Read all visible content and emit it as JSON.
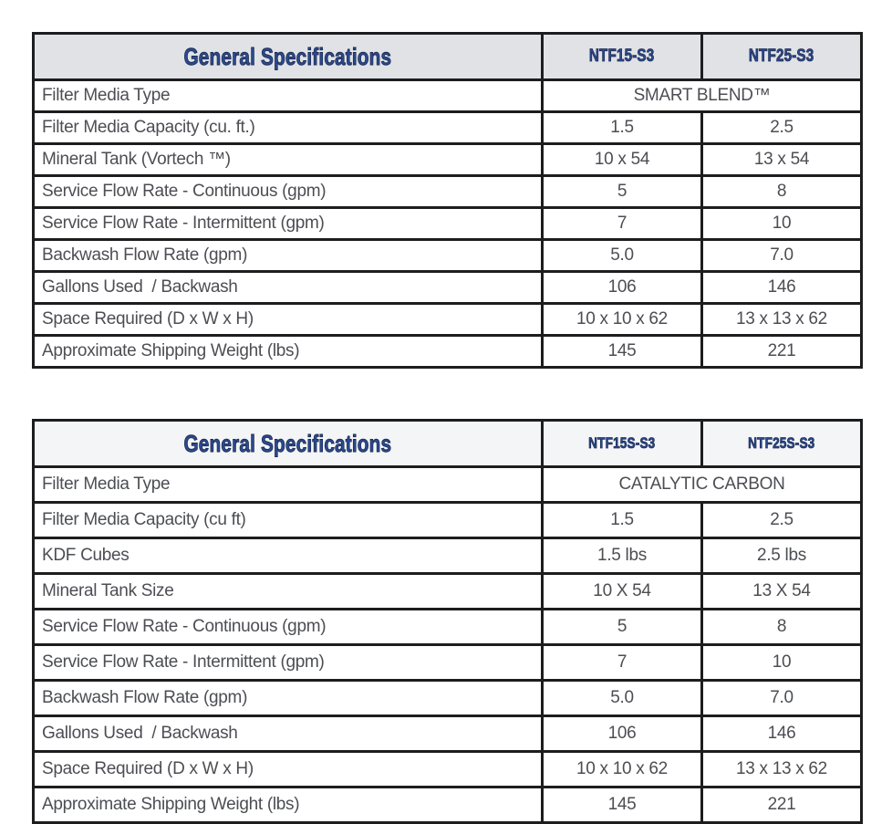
{
  "page": {
    "background": "#ffffff",
    "border_color": "#1d1d1f",
    "body_text_color": "#4c4e53",
    "heading_text_color": "#2b4a8f"
  },
  "tables": [
    {
      "title": "General Specifications",
      "columns": [
        "NTF15-S3",
        "NTF25-S3"
      ],
      "header_bg": "#e1e2e6",
      "rows": [
        {
          "label": "Filter Media Type",
          "values": [
            "SMART BLEND™"
          ]
        },
        {
          "label": "Filter Media Capacity (cu. ft.)",
          "values": [
            "1.5",
            "2.5"
          ]
        },
        {
          "label": "Mineral Tank (Vortech ™)",
          "values": [
            "10 x 54",
            "13 x 54"
          ]
        },
        {
          "label": "Service Flow Rate - Continuous (gpm)",
          "values": [
            "5",
            "8"
          ]
        },
        {
          "label": "Service Flow Rate - Intermittent (gpm)",
          "values": [
            "7",
            "10"
          ]
        },
        {
          "label": "Backwash Flow Rate (gpm)",
          "values": [
            "5.0",
            "7.0"
          ]
        },
        {
          "label": "Gallons Used  / Backwash",
          "values": [
            "106",
            "146"
          ]
        },
        {
          "label": "Space Required (D x W x H)",
          "values": [
            "10 x 10 x 62",
            "13 x 13 x 62"
          ]
        },
        {
          "label": "Approximate Shipping Weight (lbs)",
          "values": [
            "145",
            "221"
          ]
        }
      ]
    },
    {
      "title": "General Specifications",
      "columns": [
        "NTF15S-S3",
        "NTF25S-S3"
      ],
      "header_bg": "#f4f5f7",
      "rows": [
        {
          "label": "Filter Media Type",
          "values": [
            "CATALYTIC CARBON"
          ]
        },
        {
          "label": "Filter Media Capacity (cu ft)",
          "values": [
            "1.5",
            "2.5"
          ]
        },
        {
          "label": "KDF Cubes",
          "values": [
            "1.5 lbs",
            "2.5 lbs"
          ]
        },
        {
          "label": "Mineral Tank Size",
          "values": [
            "10 X 54",
            "13 X 54"
          ]
        },
        {
          "label": "Service Flow Rate - Continuous (gpm)",
          "values": [
            "5",
            "8"
          ]
        },
        {
          "label": "Service Flow Rate - Intermittent (gpm)",
          "values": [
            "7",
            "10"
          ]
        },
        {
          "label": "Backwash Flow Rate (gpm)",
          "values": [
            "5.0",
            "7.0"
          ]
        },
        {
          "label": "Gallons Used  / Backwash",
          "values": [
            "106",
            "146"
          ]
        },
        {
          "label": "Space Required (D x W x H)",
          "values": [
            "10 x 10 x 62",
            "13 x 13 x 62"
          ]
        },
        {
          "label": "Approximate Shipping Weight (lbs)",
          "values": [
            "145",
            "221"
          ]
        }
      ]
    }
  ]
}
